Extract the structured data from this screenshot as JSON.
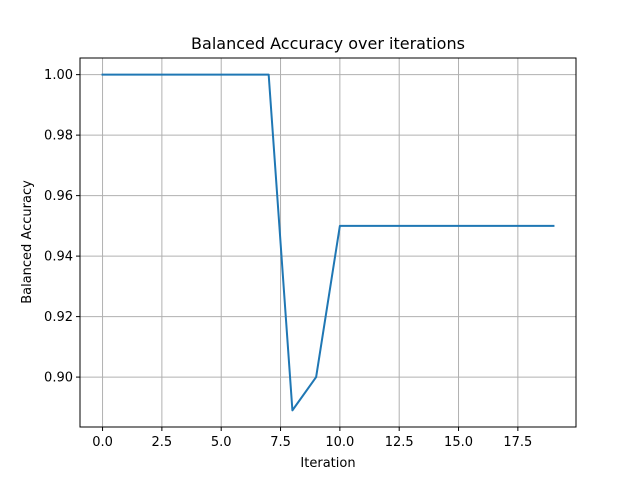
{
  "chart_data": {
    "type": "line",
    "title": "Balanced Accuracy over iterations",
    "xlabel": "Iteration",
    "ylabel": "Balanced Accuracy",
    "xlim": [
      -0.95,
      19.95
    ],
    "ylim": [
      0.8835,
      1.0055
    ],
    "xticks": [
      0,
      2.5,
      5,
      7.5,
      10,
      12.5,
      15,
      17.5
    ],
    "xtick_labels": [
      "0.0",
      "2.5",
      "5.0",
      "7.5",
      "10.0",
      "12.5",
      "15.0",
      "17.5"
    ],
    "yticks": [
      0.9,
      0.92,
      0.94,
      0.96,
      0.98,
      1.0
    ],
    "ytick_labels": [
      "0.90",
      "0.92",
      "0.94",
      "0.96",
      "0.98",
      "1.00"
    ],
    "grid": true,
    "series": [
      {
        "color": "#1f77b4",
        "x": [
          0,
          1,
          2,
          3,
          4,
          5,
          6,
          7,
          8,
          9,
          10,
          11,
          12,
          13,
          14,
          15,
          16,
          17,
          18,
          19
        ],
        "y": [
          1.0,
          1.0,
          1.0,
          1.0,
          1.0,
          1.0,
          1.0,
          1.0,
          0.889,
          0.9,
          0.95,
          0.95,
          0.95,
          0.95,
          0.95,
          0.95,
          0.95,
          0.95,
          0.95,
          0.95
        ]
      }
    ]
  }
}
